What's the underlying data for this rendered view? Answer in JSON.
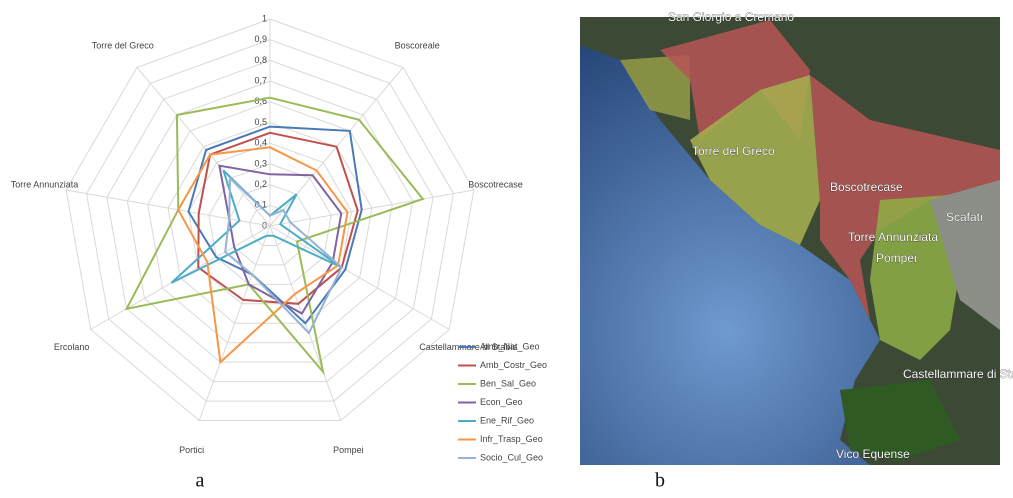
{
  "chart_data": {
    "type": "radar",
    "categories": [
      null,
      "Boscoreale",
      "Boscotrecase",
      "Castellammare di Stabia",
      "Pompei",
      "Portici",
      "Ercolano",
      "Torre Annunziata",
      "Torre del Greco"
    ],
    "ylim": [
      0,
      1
    ],
    "yticks": [
      0,
      {
        "value": 0.1,
        "label": "0,1"
      },
      {
        "value": 0.2,
        "label": "0,2"
      },
      {
        "value": 0.3,
        "label": "0,3"
      },
      {
        "value": 0.4,
        "label": "0,4"
      },
      {
        "value": 0.5,
        "label": "0,5"
      },
      {
        "value": 0.6,
        "label": "0,6"
      },
      {
        "value": 0.7,
        "label": "0,7"
      },
      {
        "value": 0.8,
        "label": "0,8"
      },
      {
        "value": 0.9,
        "label": "0,9"
      },
      1
    ],
    "grid": true,
    "legend": "bottom-right",
    "series": [
      {
        "name": "Amb_Nat_Geo",
        "color": "#4a7ab5",
        "values": [
          0.48,
          0.6,
          0.45,
          0.42,
          0.5,
          0.25,
          0.3,
          0.4,
          0.48
        ]
      },
      {
        "name": "Amb_Costr_Geo",
        "color": "#c0504d",
        "values": [
          0.45,
          0.5,
          0.43,
          0.4,
          0.4,
          0.38,
          0.4,
          0.35,
          0.45
        ]
      },
      {
        "name": "Ben_Sal_Geo",
        "color": "#9bbb59",
        "values": [
          0.62,
          0.67,
          0.75,
          0.15,
          0.75,
          0.3,
          0.8,
          0.45,
          0.7
        ]
      },
      {
        "name": "Econ_Geo",
        "color": "#8064a2",
        "values": [
          0.25,
          0.32,
          0.35,
          0.35,
          0.45,
          0.3,
          0.2,
          0.2,
          0.38
        ]
      },
      {
        "name": "Ene_Rif_Geo",
        "color": "#4bacc6",
        "values": [
          0.05,
          0.2,
          0.05,
          0.4,
          0.05,
          0.05,
          0.55,
          0.15,
          0.35
        ]
      },
      {
        "name": "Infr_Trasp_Geo",
        "color": "#f79646",
        "values": [
          0.38,
          0.35,
          0.38,
          0.38,
          0.35,
          0.7,
          0.35,
          0.45,
          0.45
        ]
      },
      {
        "name": "Socio_Cul_Geo",
        "color": "#95b3d7",
        "values": [
          0.05,
          0.1,
          0.1,
          0.4,
          0.55,
          0.25,
          0.25,
          0.2,
          0.3
        ]
      }
    ]
  },
  "map": {
    "labels": [
      "San Giorgio a Cremano",
      "Torre del Greco",
      "Boscotrecase",
      "Torre Annunziata",
      "Pompei",
      "Scafati",
      "Castellammare di Stab",
      "Vico Equense"
    ]
  },
  "captions": [
    "a",
    "b"
  ]
}
